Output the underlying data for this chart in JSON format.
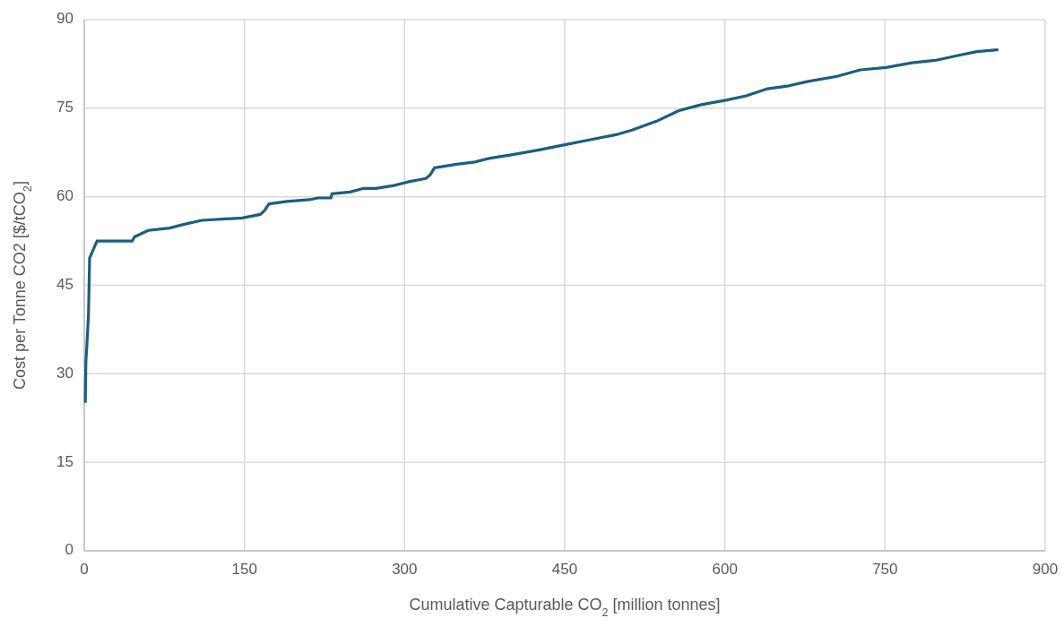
{
  "chart_data": {
    "type": "line",
    "xlabel": "Cumulative Capturable CO$_{2}$ [million tonnes]",
    "ylabel": "Cost per Tonne CO2 [$/tCO$_{2}$]",
    "xlim": [
      0,
      900
    ],
    "xticks": [
      0,
      150,
      300,
      450,
      600,
      750,
      900
    ],
    "ylim": [
      0,
      90
    ],
    "yticks": [
      0,
      15,
      30,
      45,
      60,
      75,
      90
    ],
    "grid": true,
    "marker": "none",
    "line_style": "solid",
    "series": [
      {
        "color": "#1b5e7f",
        "x": [
          1,
          1.5,
          2.5,
          4,
          5,
          10,
          12,
          45,
          47,
          60,
          80,
          93,
          110,
          148,
          165,
          169,
          173,
          190,
          211,
          219,
          231,
          232,
          249,
          261,
          273,
          290,
          303,
          320,
          324,
          328,
          349,
          366,
          379,
          400,
          425,
          450,
          475,
          500,
          513,
          536,
          557,
          578,
          602,
          620,
          640,
          660,
          677,
          705,
          727,
          751,
          775,
          797,
          817,
          836,
          855
        ],
        "values": [
          25.3,
          32,
          35,
          40.2,
          49.6,
          51.7,
          52.5,
          52.5,
          53.2,
          54.3,
          54.7,
          55.3,
          56,
          56.4,
          57,
          57.7,
          58.8,
          59.2,
          59.5,
          59.8,
          59.8,
          60.5,
          60.8,
          61.4,
          61.4,
          61.9,
          62.5,
          63.1,
          63.7,
          64.9,
          65.5,
          65.9,
          66.5,
          67.1,
          67.9,
          68.8,
          69.7,
          70.6,
          71.3,
          72.8,
          74.6,
          75.6,
          76.4,
          77.1,
          78.3,
          78.8,
          79.5,
          80.4,
          81.5,
          81.9,
          82.7,
          83.1,
          83.9,
          84.6,
          84.9
        ]
      }
    ]
  }
}
